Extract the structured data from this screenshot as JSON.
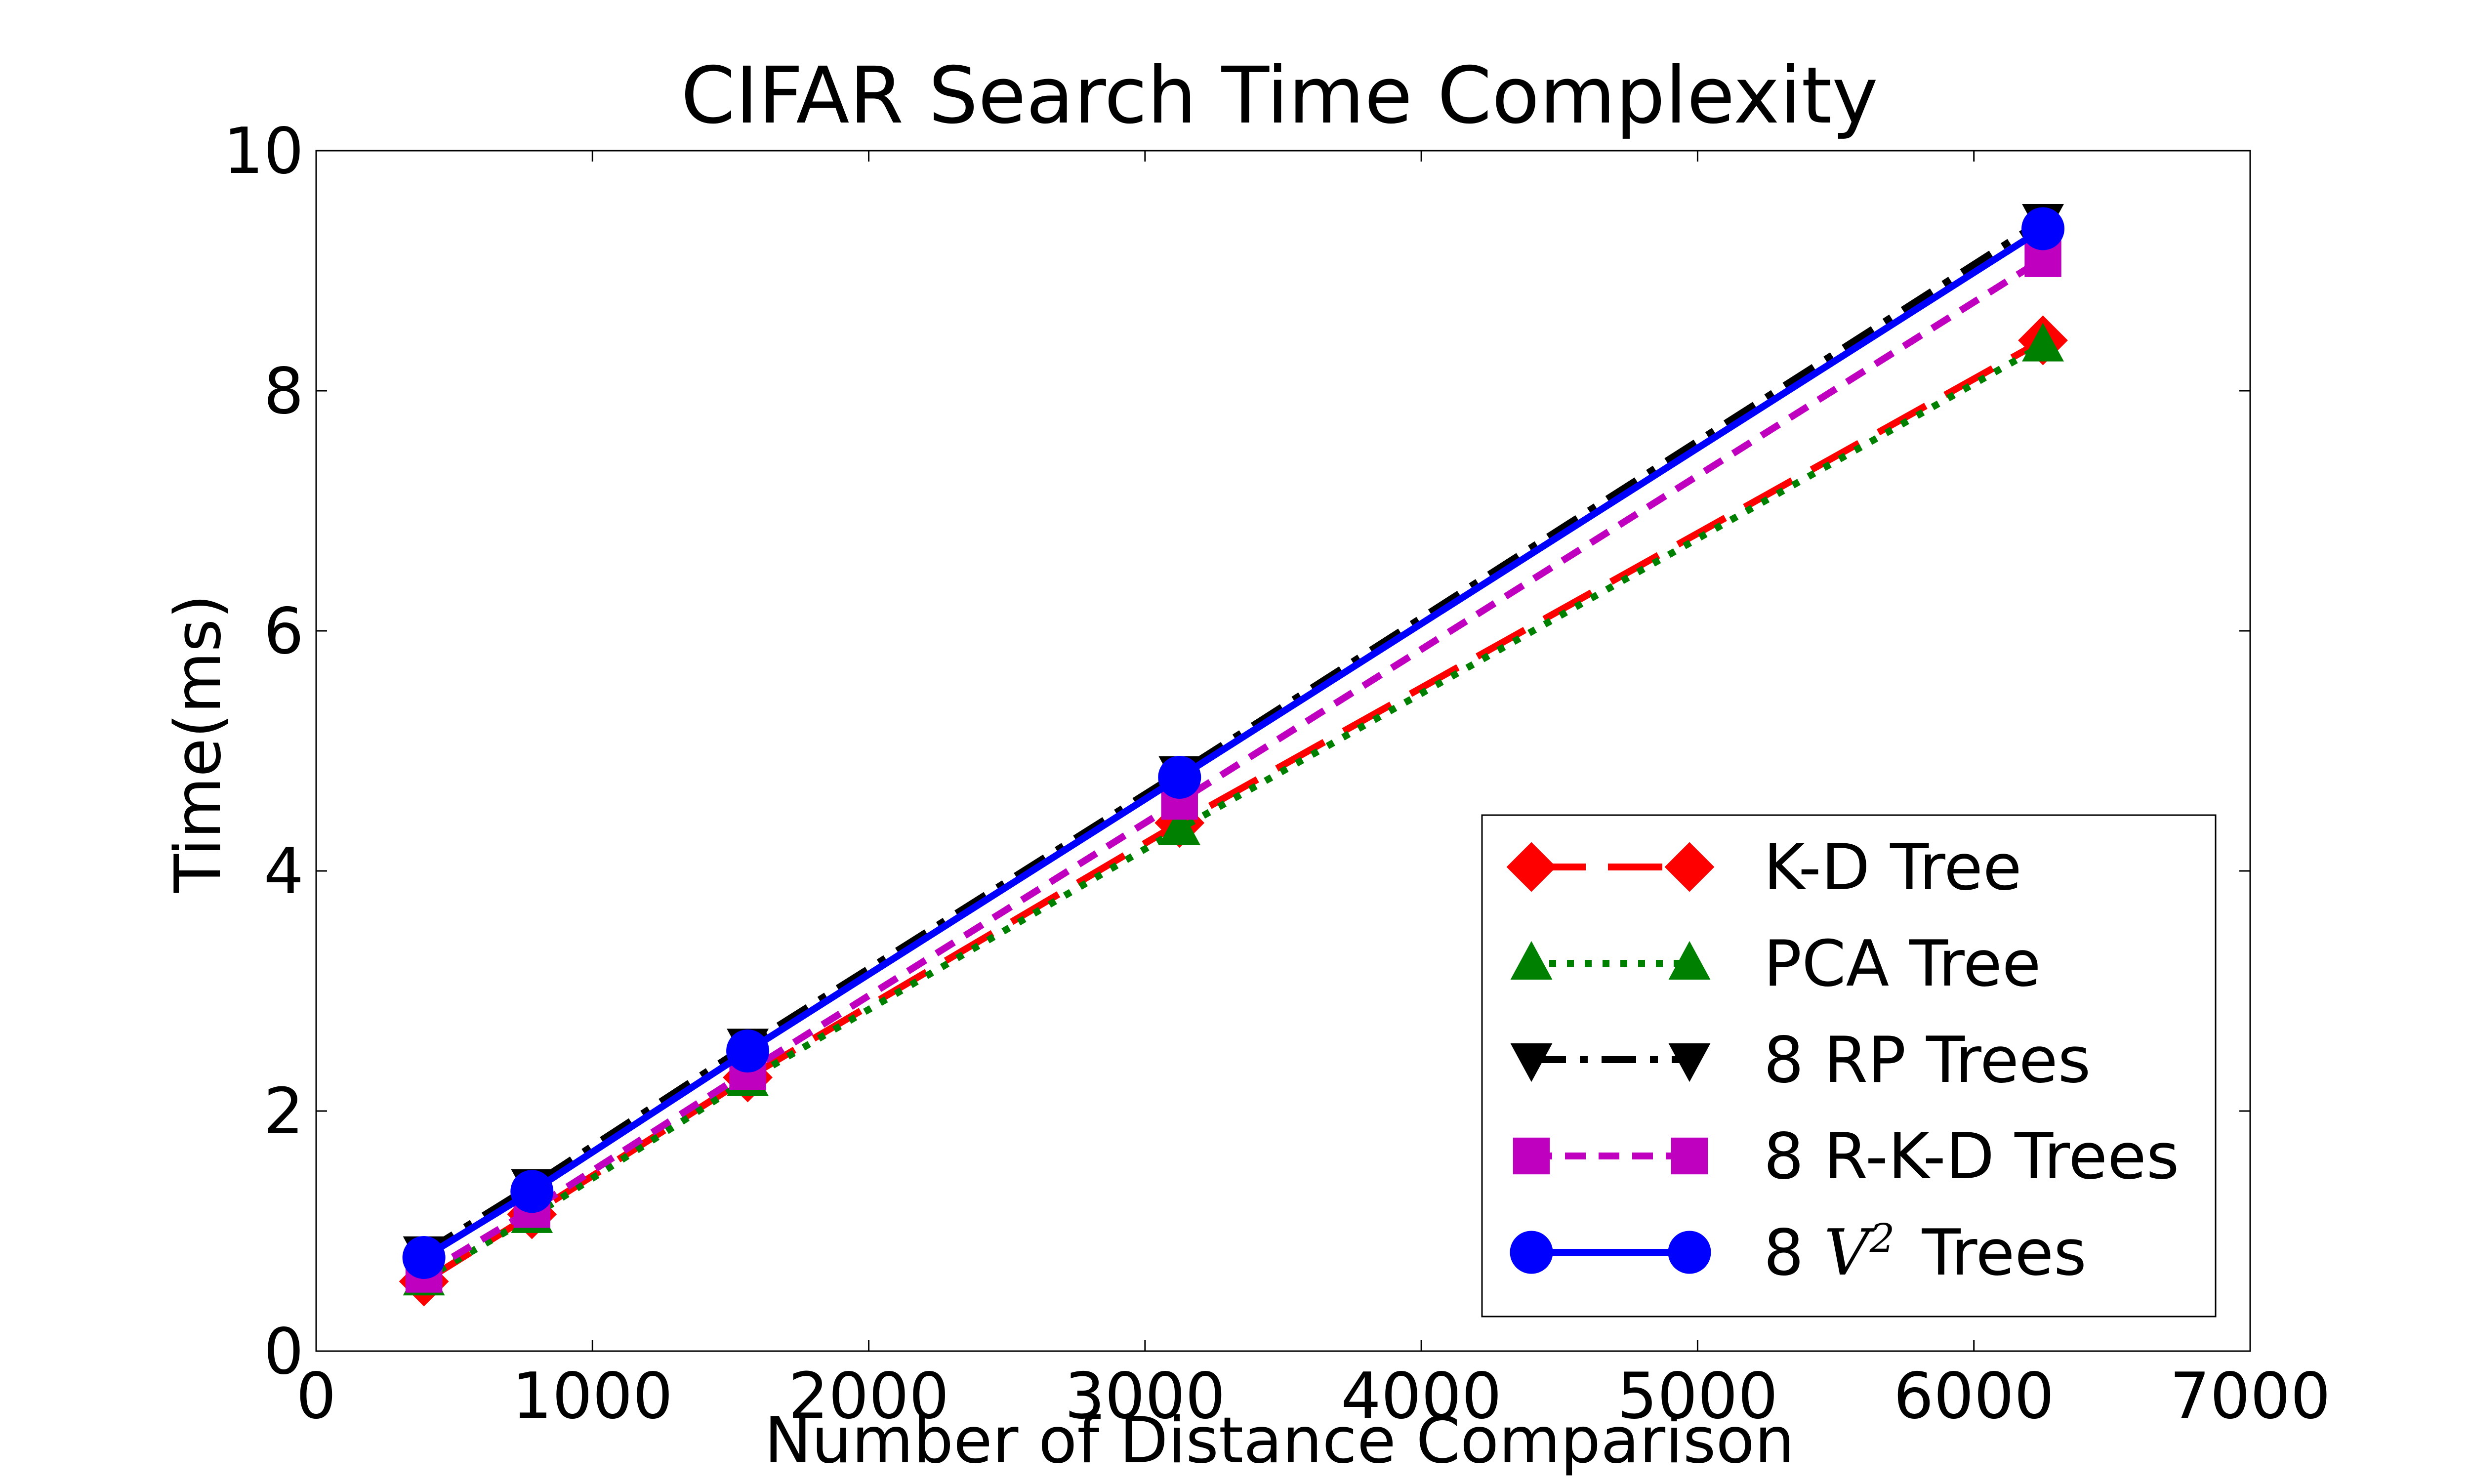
{
  "chart_data": {
    "type": "line",
    "title": "CIFAR Search Time Complexity",
    "xlabel": "Number of Distance Comparison",
    "ylabel": "Time(ms)",
    "xlim": [
      0,
      7000
    ],
    "ylim": [
      0,
      10
    ],
    "xticks": [
      0,
      1000,
      2000,
      3000,
      4000,
      5000,
      6000,
      7000
    ],
    "yticks": [
      0,
      2,
      4,
      6,
      8,
      10
    ],
    "x": [
      390,
      781,
      1562,
      3125,
      6250
    ],
    "grid": false,
    "legend_position": "lower-right",
    "series": [
      {
        "name": "K-D Tree",
        "values": [
          0.58,
          1.14,
          2.28,
          4.4,
          8.42
        ],
        "color": "#ff0000",
        "line_style": "long-dash",
        "marker": "diamond"
      },
      {
        "name": "PCA Tree",
        "values": [
          0.6,
          1.12,
          2.26,
          4.35,
          8.38
        ],
        "color": "#008000",
        "line_style": "dotted",
        "marker": "triangle-up"
      },
      {
        "name": "8 RP Trees",
        "values": [
          0.82,
          1.38,
          2.55,
          4.82,
          9.42
        ],
        "color": "#000000",
        "line_style": "dash-dot",
        "marker": "triangle-down"
      },
      {
        "name": "8 R-K-D Trees",
        "values": [
          0.64,
          1.18,
          2.33,
          4.58,
          9.1
        ],
        "color": "#bf00bf",
        "line_style": "dashed",
        "marker": "square"
      },
      {
        "name_prefix": "8 ",
        "name_math": "V",
        "name_sup": "2",
        "name_suffix": "Trees",
        "values": [
          0.78,
          1.33,
          2.5,
          4.78,
          9.35
        ],
        "color": "#0000ff",
        "line_style": "solid",
        "marker": "circle"
      }
    ]
  }
}
